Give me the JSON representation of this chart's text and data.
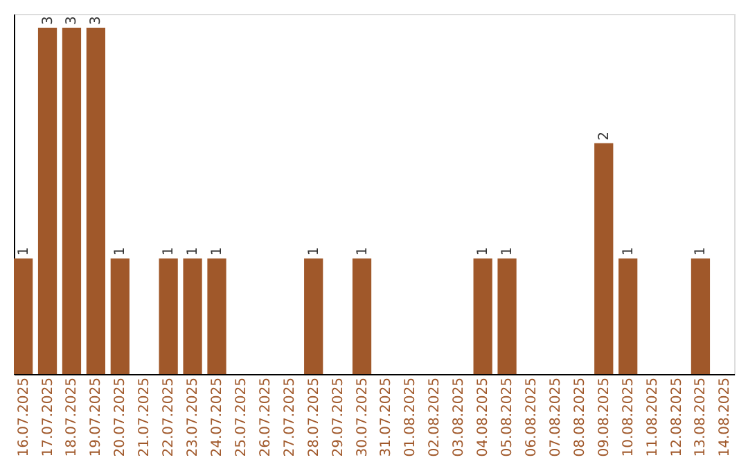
{
  "chart_data": {
    "type": "bar",
    "categories": [
      "16.07.2025",
      "17.07.2025",
      "18.07.2025",
      "19.07.2025",
      "20.07.2025",
      "21.07.2025",
      "22.07.2025",
      "23.07.2025",
      "24.07.2025",
      "25.07.2025",
      "26.07.2025",
      "27.07.2025",
      "28.07.2025",
      "29.07.2025",
      "30.07.2025",
      "31.07.2025",
      "01.08.2025",
      "02.08.2025",
      "03.08.2025",
      "04.08.2025",
      "05.08.2025",
      "06.08.2025",
      "07.08.2025",
      "08.08.2025",
      "09.08.2025",
      "10.08.2025",
      "11.08.2025",
      "12.08.2025",
      "13.08.2025",
      "14.08.2025"
    ],
    "values": [
      1,
      3,
      3,
      3,
      1,
      0,
      1,
      1,
      1,
      0,
      0,
      0,
      1,
      0,
      1,
      0,
      0,
      0,
      0,
      1,
      1,
      0,
      0,
      0,
      2,
      1,
      0,
      0,
      1,
      0
    ],
    "value_labels": [
      "1",
      "3",
      "3",
      "3",
      "1",
      null,
      "1",
      "1",
      "1",
      null,
      null,
      null,
      "1",
      null,
      "1",
      null,
      null,
      null,
      null,
      "1",
      "1",
      null,
      null,
      null,
      "2",
      "1",
      null,
      null,
      "1",
      null
    ],
    "color": "#a0582a",
    "ylim": [
      0,
      3.12
    ],
    "tick_labels": "x",
    "grid": false
  }
}
